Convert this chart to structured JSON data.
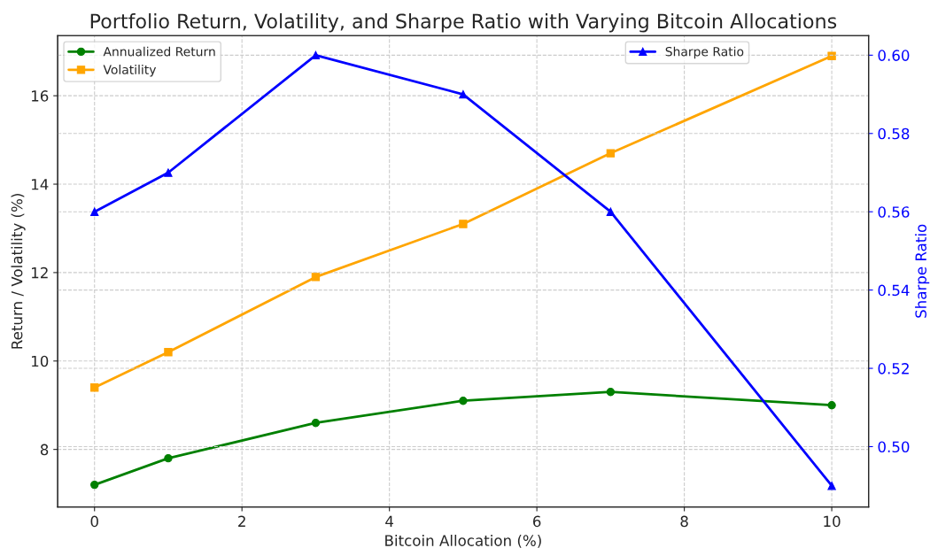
{
  "chart_data": {
    "type": "line",
    "title": "Portfolio Return, Volatility, and Sharpe Ratio with Varying Bitcoin Allocations",
    "xlabel": "Bitcoin Allocation (%)",
    "ylabel": "Return / Volatility (%)",
    "y2label": "Sharpe Ratio",
    "x": [
      0,
      1,
      3,
      5,
      7,
      10
    ],
    "series": [
      {
        "name": "Annualized Return",
        "color": "#008000",
        "marker": "circle",
        "values": [
          7.2,
          7.8,
          8.6,
          9.1,
          9.3,
          9.0
        ]
      },
      {
        "name": "Volatility",
        "color": "#ffa500",
        "marker": "square",
        "values": [
          9.4,
          10.2,
          11.9,
          13.1,
          14.7,
          16.9
        ]
      },
      {
        "name": "Sharpe Ratio",
        "color": "#0000ff",
        "marker": "triangle",
        "axis": "y2",
        "values": [
          0.56,
          0.57,
          0.6,
          0.59,
          0.56,
          0.49
        ]
      }
    ],
    "xlim": [
      -0.5,
      10.5
    ],
    "xticks": [
      0,
      2,
      4,
      6,
      8,
      10
    ],
    "ylim": [
      6.7,
      17.36
    ],
    "yticks": [
      8,
      10,
      12,
      14,
      16
    ],
    "y2lim": [
      0.4846,
      0.605
    ],
    "y2ticks": [
      {
        "value": 0.5,
        "label": "0.50"
      },
      0.52,
      0.54,
      0.56,
      0.58,
      {
        "value": 0.6,
        "label": "0.60"
      }
    ],
    "grid": true,
    "legend": "top",
    "line_style": "solid"
  }
}
